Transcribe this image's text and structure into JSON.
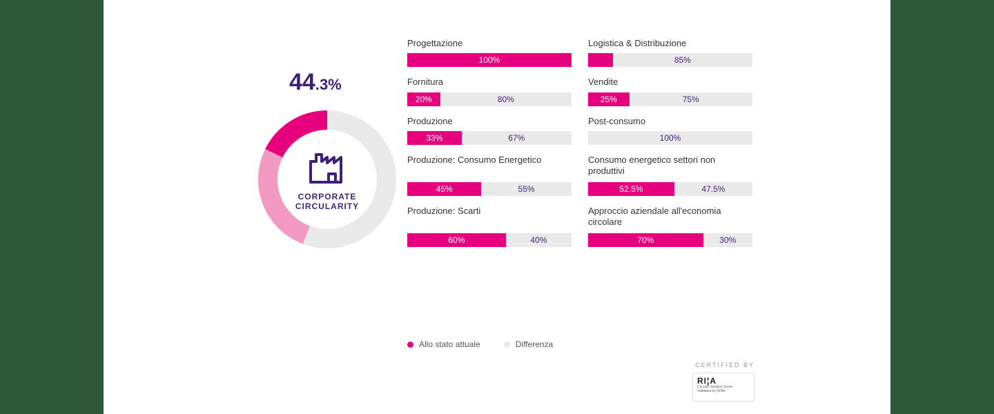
{
  "colors": {
    "accent_pink": "#e6007e",
    "accent_pink_light": "#f29abf",
    "accent_purple": "#3f1f78",
    "bar_bg": "#e9e9e9",
    "side_band": "#2f5836",
    "text": "#333333",
    "legend_text": "#555555"
  },
  "gauge": {
    "value_big": "44",
    "value_small": ".3%",
    "percent": 44.3,
    "title_line1": "CORPORATE",
    "title_line2": "CIRCULARITY"
  },
  "legend": {
    "actual": "Allo stato attuale",
    "diff": "Differenza"
  },
  "bars": [
    {
      "title": "Progettazione",
      "actual": 100,
      "two_line": false,
      "col": 0
    },
    {
      "title": "Logistica & Distribuzione",
      "actual": 15,
      "diff_label": "85%",
      "hide_actual_label": true,
      "two_line": false,
      "col": 1
    },
    {
      "title": "Fornitura",
      "actual": 20,
      "two_line": false,
      "col": 0
    },
    {
      "title": "Vendite",
      "actual": 25,
      "two_line": false,
      "col": 1
    },
    {
      "title": "Produzione",
      "actual": 33,
      "two_line": false,
      "col": 0
    },
    {
      "title": "Post-consumo",
      "actual": 0,
      "diff_label": "100%",
      "hide_actual_label": true,
      "two_line": false,
      "col": 1
    },
    {
      "title": "Produzione: Consumo Energetico",
      "actual": 45,
      "two_line": true,
      "col": 0
    },
    {
      "title": "Consumo energetico settori non produttivi",
      "actual": 52.5,
      "two_line": true,
      "col": 1
    },
    {
      "title": "Produzione: Scarti",
      "actual": 60,
      "two_line": true,
      "col": 0
    },
    {
      "title": "Approccio aziendale all'economia circolare",
      "actual": 70,
      "two_line": true,
      "col": 1
    }
  ],
  "cert": {
    "label": "CERTIFIED BY",
    "logo": "RI¦A",
    "sub1": "Circular Solution Score",
    "sub2": "Validated by RINA"
  }
}
